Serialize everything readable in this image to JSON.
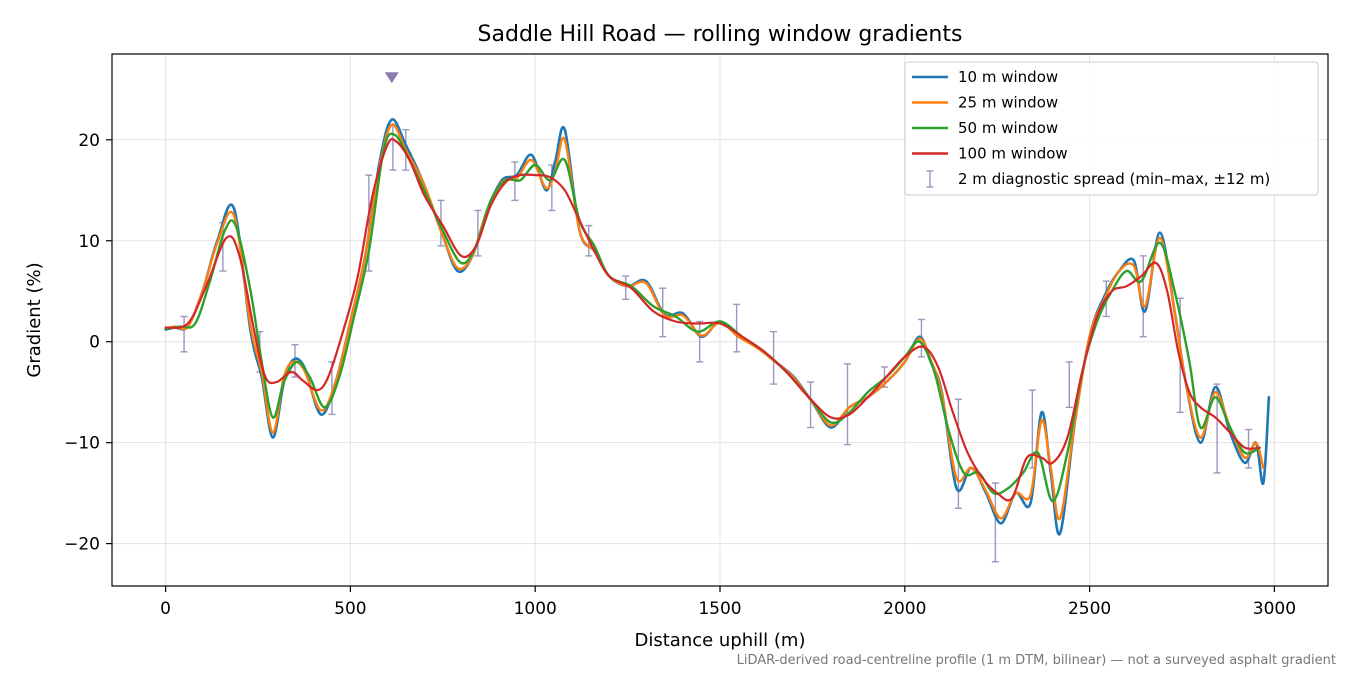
{
  "chart_data": {
    "type": "line",
    "title": "Saddle Hill Road — rolling window gradients",
    "xlabel": "Distance uphill (m)",
    "ylabel": "Gradient (%)",
    "xlim": [
      -145,
      3145
    ],
    "ylim": [
      -24.2,
      28.5
    ],
    "xticks": [
      0,
      500,
      1000,
      1500,
      2000,
      2500,
      3000
    ],
    "yticks": [
      -20,
      -10,
      0,
      10,
      20
    ],
    "xtick_labels": [
      "0",
      "500",
      "1000",
      "1500",
      "2000",
      "2500",
      "3000"
    ],
    "ytick_labels": [
      "−20",
      "−10",
      "0",
      "10",
      "20"
    ],
    "grid": true,
    "legend_position": "top-right",
    "footnote": "LiDAR-derived road-centreline profile (1 m DTM, bilinear) — not a surveyed asphalt gradient",
    "peak_marker": {
      "x": 612,
      "y": 26.2,
      "color": "#8c7ab0"
    },
    "colors": {
      "axis": "#000000",
      "grid": "#e3e3e3",
      "errorbar": "#9a98be"
    },
    "series": [
      {
        "name": "10 m window",
        "color": "#1f77b4",
        "width": 2.6,
        "x": [
          0,
          25,
          60,
          100,
          140,
          185,
          230,
          260,
          290,
          320,
          345,
          375,
          420,
          460,
          500,
          540,
          580,
          612,
          650,
          700,
          750,
          790,
          830,
          870,
          910,
          950,
          990,
          1030,
          1055,
          1080,
          1120,
          1160,
          1200,
          1250,
          1300,
          1350,
          1400,
          1450,
          1500,
          1550,
          1600,
          1650,
          1700,
          1750,
          1800,
          1850,
          1900,
          1950,
          2000,
          2040,
          2070,
          2100,
          2140,
          2180,
          2220,
          2260,
          2300,
          2340,
          2370,
          2395,
          2420,
          2460,
          2500,
          2540,
          2580,
          2620,
          2650,
          2690,
          2730,
          2760,
          2800,
          2840,
          2880,
          2920,
          2950,
          2970,
          2985
        ],
        "y": [
          1.2,
          1.4,
          1.5,
          5.0,
          10.0,
          13.2,
          1.0,
          -3.5,
          -9.5,
          -4.0,
          -1.8,
          -2.5,
          -7.2,
          -4.0,
          2.0,
          8.5,
          18.0,
          22.0,
          19.5,
          15.5,
          10.5,
          7.0,
          8.5,
          13.0,
          16.0,
          16.5,
          18.5,
          15.0,
          18.0,
          21.0,
          11.0,
          9.0,
          6.5,
          5.5,
          6.0,
          2.7,
          2.8,
          0.5,
          2.0,
          0.5,
          -0.5,
          -2.0,
          -3.5,
          -6.0,
          -8.5,
          -6.5,
          -5.5,
          -4.0,
          -2.0,
          0.5,
          -2.0,
          -5.0,
          -14.5,
          -12.5,
          -15.0,
          -18.0,
          -15.0,
          -16.0,
          -7.0,
          -13.0,
          -19.0,
          -8.0,
          0.5,
          4.5,
          7.0,
          8.0,
          3.0,
          10.8,
          3.0,
          -4.0,
          -10.0,
          -4.5,
          -9.0,
          -12.0,
          -10.0,
          -14.0,
          -5.5
        ]
      },
      {
        "name": "25 m window",
        "color": "#ff7f0e",
        "width": 2.4,
        "x": [
          0,
          25,
          60,
          100,
          140,
          185,
          230,
          260,
          290,
          320,
          345,
          375,
          420,
          460,
          500,
          540,
          580,
          612,
          650,
          700,
          750,
          790,
          830,
          870,
          910,
          950,
          990,
          1030,
          1055,
          1080,
          1120,
          1160,
          1200,
          1250,
          1300,
          1350,
          1400,
          1450,
          1500,
          1550,
          1600,
          1650,
          1700,
          1750,
          1800,
          1850,
          1900,
          1950,
          2000,
          2040,
          2070,
          2100,
          2140,
          2180,
          2220,
          2260,
          2300,
          2340,
          2370,
          2395,
          2420,
          2460,
          2500,
          2540,
          2580,
          2620,
          2650,
          2690,
          2730,
          2760,
          2800,
          2840,
          2880,
          2920,
          2950,
          2970
        ],
        "y": [
          1.3,
          1.5,
          1.5,
          5.0,
          9.8,
          12.5,
          1.5,
          -3.0,
          -9.0,
          -3.5,
          -2.0,
          -2.8,
          -6.8,
          -4.0,
          2.0,
          8.5,
          17.5,
          21.5,
          19.0,
          15.5,
          10.5,
          7.3,
          8.5,
          13.0,
          15.8,
          16.2,
          18.0,
          15.2,
          17.0,
          20.0,
          11.0,
          9.0,
          6.5,
          5.5,
          5.8,
          2.6,
          2.6,
          0.6,
          1.9,
          0.5,
          -0.6,
          -2.0,
          -3.6,
          -6.0,
          -8.3,
          -6.5,
          -5.5,
          -4.0,
          -2.0,
          0.3,
          -1.8,
          -5.2,
          -13.5,
          -12.5,
          -14.8,
          -17.5,
          -15.0,
          -15.2,
          -7.8,
          -12.5,
          -17.5,
          -8.0,
          0.5,
          4.2,
          7.0,
          7.5,
          3.5,
          10.3,
          3.0,
          -4.0,
          -9.5,
          -5.0,
          -8.5,
          -11.5,
          -10.0,
          -12.5
        ]
      },
      {
        "name": "50 m window",
        "color": "#2ca02c",
        "width": 2.4,
        "x": [
          0,
          40,
          80,
          120,
          160,
          190,
          230,
          260,
          290,
          320,
          355,
          390,
          430,
          470,
          510,
          550,
          590,
          620,
          660,
          700,
          750,
          800,
          840,
          880,
          920,
          960,
          1000,
          1040,
          1080,
          1120,
          1160,
          1200,
          1260,
          1320,
          1380,
          1440,
          1500,
          1560,
          1620,
          1680,
          1740,
          1800,
          1850,
          1900,
          1950,
          2000,
          2040,
          2080,
          2120,
          2160,
          2200,
          2240,
          2280,
          2320,
          2360,
          2400,
          2440,
          2480,
          2520,
          2560,
          2600,
          2640,
          2690,
          2730,
          2770,
          2800,
          2840,
          2880,
          2920,
          2960
        ],
        "y": [
          1.3,
          1.5,
          1.8,
          6.0,
          11.0,
          11.5,
          5.0,
          -2.0,
          -7.5,
          -4.0,
          -2.0,
          -3.5,
          -6.5,
          -3.5,
          2.5,
          9.0,
          19.0,
          20.5,
          18.0,
          15.0,
          11.0,
          7.8,
          9.5,
          14.0,
          16.0,
          16.0,
          17.5,
          16.0,
          18.0,
          12.0,
          9.5,
          6.5,
          5.5,
          3.5,
          2.5,
          1.0,
          2.0,
          0.5,
          -1.0,
          -3.0,
          -5.5,
          -8.0,
          -7.0,
          -5.0,
          -3.5,
          -1.5,
          0.0,
          -3.0,
          -9.0,
          -13.0,
          -13.0,
          -15.0,
          -14.5,
          -13.0,
          -11.0,
          -15.8,
          -11.0,
          -3.0,
          2.0,
          5.0,
          7.0,
          6.0,
          9.8,
          5.0,
          -2.0,
          -8.5,
          -5.5,
          -8.5,
          -11.0,
          -10.5
        ]
      },
      {
        "name": "100 m window",
        "color": "#d62728",
        "width": 2.2,
        "x": [
          0,
          60,
          110,
          165,
          200,
          240,
          270,
          300,
          340,
          370,
          410,
          440,
          480,
          520,
          560,
          600,
          625,
          660,
          700,
          750,
          800,
          840,
          880,
          920,
          960,
          1000,
          1040,
          1080,
          1120,
          1160,
          1200,
          1260,
          1320,
          1380,
          1440,
          1500,
          1560,
          1620,
          1680,
          1740,
          1800,
          1850,
          1900,
          1950,
          2000,
          2050,
          2090,
          2130,
          2170,
          2210,
          2250,
          2290,
          2330,
          2370,
          2400,
          2440,
          2480,
          2520,
          2560,
          2600,
          2640,
          2680,
          2710,
          2740,
          2770,
          2800,
          2840,
          2880,
          2920,
          2960
        ],
        "y": [
          1.4,
          1.8,
          5.5,
          10.3,
          8.5,
          1.0,
          -3.5,
          -4.0,
          -3.0,
          -3.8,
          -4.8,
          -3.5,
          1.0,
          6.5,
          14.5,
          19.5,
          19.8,
          18.0,
          14.5,
          11.5,
          8.5,
          9.5,
          13.5,
          15.8,
          16.5,
          16.5,
          16.3,
          15.0,
          12.0,
          9.0,
          6.5,
          5.3,
          3.0,
          2.0,
          1.8,
          1.8,
          0.5,
          -1.0,
          -3.0,
          -5.5,
          -7.5,
          -7.2,
          -5.5,
          -3.5,
          -1.5,
          -0.5,
          -2.5,
          -7.0,
          -11.0,
          -13.5,
          -15.0,
          -15.5,
          -11.5,
          -11.5,
          -12.0,
          -9.5,
          -3.0,
          2.5,
          5.0,
          5.5,
          6.5,
          7.8,
          5.0,
          -1.0,
          -5.0,
          -6.5,
          -7.5,
          -9.0,
          -10.5,
          -10.5
        ]
      }
    ],
    "errorbars": {
      "name": "2 m diagnostic spread (min–max, ±12 m)",
      "x": [
        50,
        155,
        255,
        350,
        450,
        550,
        615,
        650,
        745,
        845,
        945,
        1045,
        1145,
        1245,
        1345,
        1445,
        1545,
        1645,
        1745,
        1845,
        1945,
        2045,
        2145,
        2245,
        2345,
        2445,
        2545,
        2645,
        2745,
        2845,
        2930
      ],
      "low": [
        -1.0,
        7.0,
        -3.0,
        -3.5,
        -7.2,
        7.0,
        17.0,
        17.0,
        9.5,
        8.5,
        14.0,
        13.0,
        8.5,
        4.2,
        0.5,
        -2.0,
        -1.0,
        -4.2,
        -8.5,
        -10.2,
        -4.5,
        -1.5,
        -16.5,
        -21.8,
        -12.5,
        -6.5,
        2.5,
        0.5,
        -7.0,
        -13.0,
        -12.5
      ],
      "high": [
        2.5,
        11.8,
        1.0,
        -0.3,
        -2.0,
        16.5,
        21.5,
        21.0,
        14.0,
        13.0,
        17.8,
        17.5,
        11.5,
        6.5,
        5.3,
        2.0,
        3.7,
        1.0,
        -4.0,
        -2.2,
        -2.5,
        2.2,
        -5.7,
        -14.0,
        -4.8,
        -2.0,
        6.0,
        8.5,
        4.3,
        -4.2,
        -8.7
      ]
    }
  }
}
